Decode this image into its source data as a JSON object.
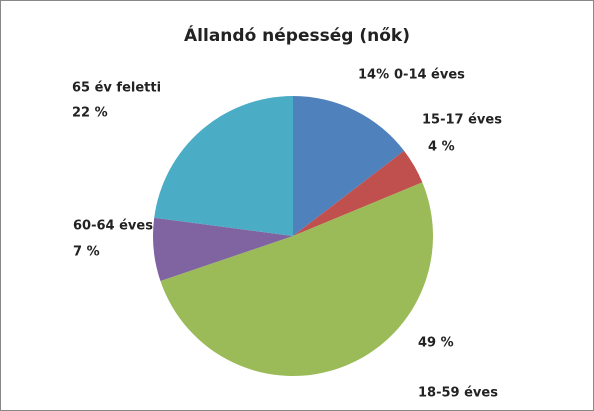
{
  "chart_data": {
    "type": "pie",
    "title": "Állandó népesség (nők)",
    "categories": [
      "0-14 éves",
      "15-17 éves",
      "18-59 éves",
      "60-64 éves",
      "65 év feletti"
    ],
    "values": [
      14,
      4,
      49,
      7,
      22
    ],
    "value_labels": [
      "14%",
      "4 %",
      "49 %",
      "7 %",
      "22 %"
    ],
    "colors": [
      "#4f81bd",
      "#c0504d",
      "#9bbb59",
      "#8064a2",
      "#4bacc6"
    ]
  }
}
